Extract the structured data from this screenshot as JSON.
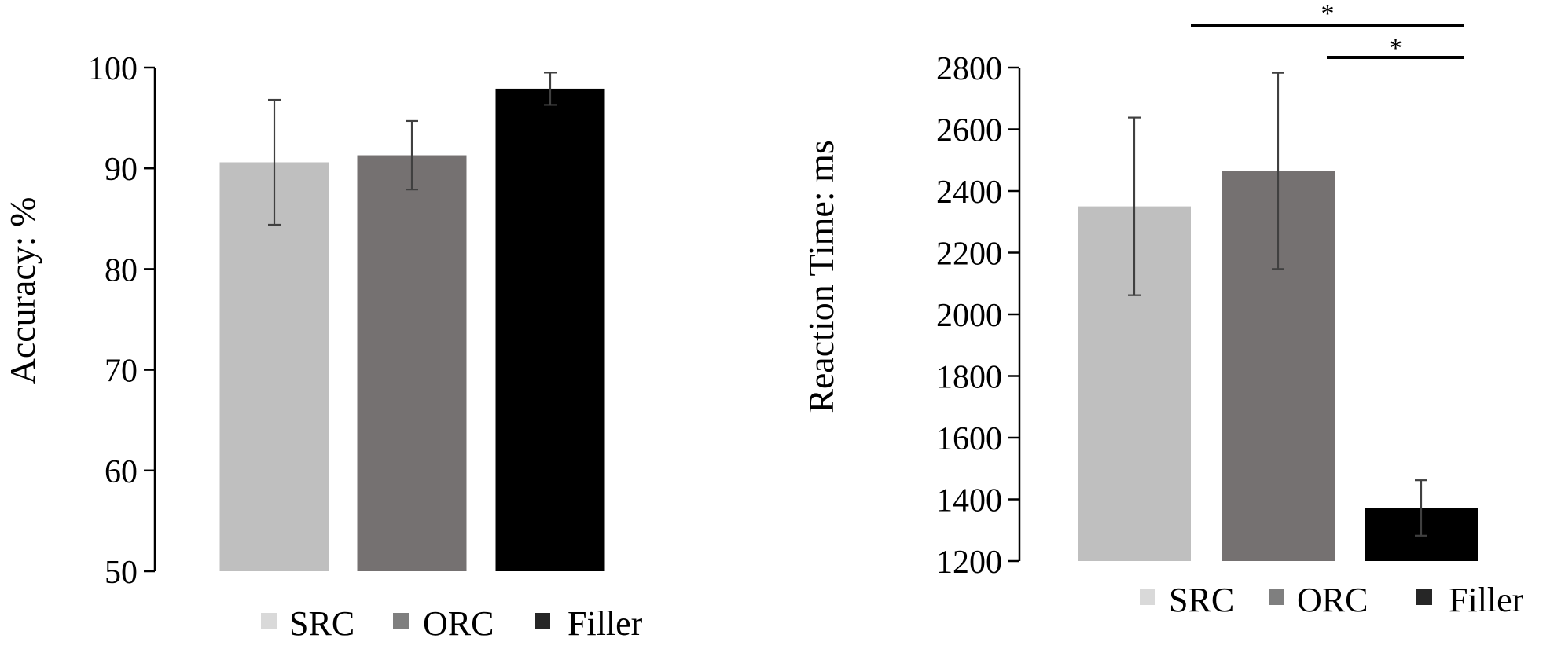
{
  "chart_data": [
    {
      "type": "bar",
      "ylabel": "Accuracy: %",
      "xlabel": "",
      "ylim": [
        50,
        100
      ],
      "yticks": [
        "50",
        "60",
        "70",
        "80",
        "90",
        "100"
      ],
      "categories": [
        "SRC",
        "ORC",
        "Filler"
      ],
      "values": [
        90.6,
        91.3,
        97.9
      ],
      "errors": [
        6.2,
        3.4,
        1.6
      ],
      "colors": [
        "#bfbfbf",
        "#757171",
        "#000000"
      ],
      "legend": {
        "position": "bottom",
        "items": [
          "SRC",
          "ORC",
          "Filler"
        ]
      },
      "grid": false
    },
    {
      "type": "bar",
      "ylabel": "Reaction Time: ms",
      "xlabel": "",
      "ylim": [
        1200,
        2800
      ],
      "yticks": [
        "1200",
        "1400",
        "1600",
        "1800",
        "2000",
        "2200",
        "2400",
        "2600",
        "2800"
      ],
      "categories": [
        "SRC",
        "ORC",
        "Filler"
      ],
      "values": [
        2350,
        2465,
        1372
      ],
      "errors": [
        288,
        318,
        90
      ],
      "colors": [
        "#bfbfbf",
        "#757171",
        "#000000"
      ],
      "legend": {
        "position": "bottom",
        "items": [
          "SRC",
          "ORC",
          "Filler"
        ]
      },
      "significance": [
        {
          "from": "SRC",
          "to": "Filler",
          "label": "*"
        },
        {
          "from": "ORC",
          "to": "Filler",
          "label": "*"
        }
      ],
      "grid": false
    }
  ]
}
